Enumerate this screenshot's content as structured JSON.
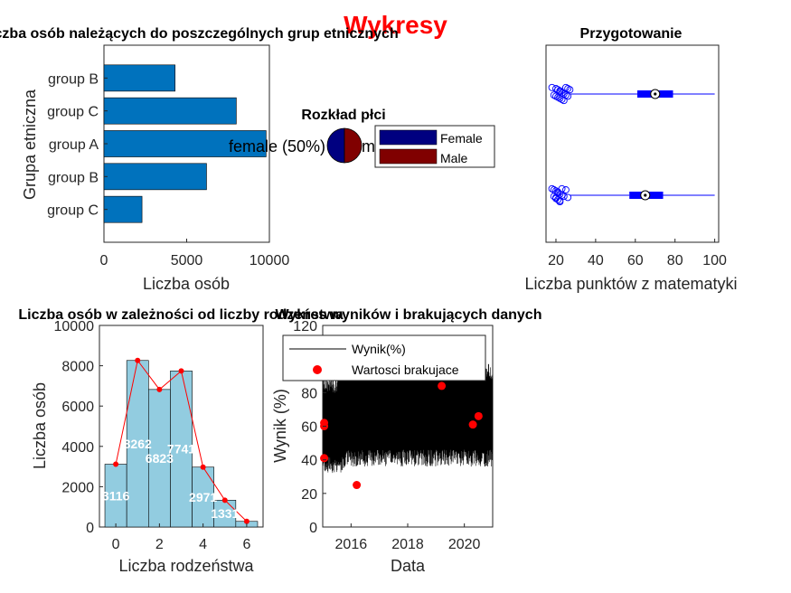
{
  "figure_title": "Wykresy",
  "chart_data": [
    {
      "type": "bar",
      "orientation": "horizontal",
      "title": "Liczba osób należących do poszczególnych grup etnicznych",
      "xlabel": "Liczba osób",
      "ylabel": "Grupa etniczna",
      "categories": [
        "group C",
        "group B",
        "group A",
        "group C",
        "group B"
      ],
      "values": [
        2300,
        6200,
        9800,
        8000,
        4300
      ],
      "xlim": [
        0,
        10000
      ],
      "xticks": [
        "0",
        "5000",
        "10000"
      ],
      "color": "#0072BD"
    },
    {
      "type": "pie",
      "title": "Rozkład płci",
      "categories": [
        "Female",
        "Male"
      ],
      "values": [
        50,
        50
      ],
      "slice_labels": [
        "female (50%)",
        "m"
      ],
      "colors": [
        "#000080",
        "#800000"
      ],
      "legend": [
        "Female",
        "Male"
      ],
      "legend_position": "right"
    },
    {
      "type": "box",
      "orientation": "horizontal",
      "title": "Przygotowanie",
      "xlabel": "Liczba punktów z matematyki",
      "xlim": [
        15,
        102
      ],
      "xticks": [
        "20",
        "40",
        "60",
        "80",
        "100"
      ],
      "color": "#0000FF",
      "series": [
        {
          "q1": 61,
          "median": 70,
          "q3": 79,
          "whisker_low": 27,
          "whisker_high": 100,
          "mean": 70,
          "outliers": [
            18,
            19,
            20,
            20,
            21,
            21,
            22,
            22,
            22,
            23,
            23,
            24,
            24,
            25,
            25,
            26,
            26,
            27
          ]
        },
        {
          "q1": 57,
          "median": 65,
          "q3": 74,
          "whisker_low": 27,
          "whisker_high": 100,
          "mean": 65,
          "outliers": [
            18,
            19,
            19,
            20,
            20,
            20,
            21,
            21,
            21,
            22,
            22,
            22,
            23,
            23,
            24,
            25,
            26
          ]
        }
      ]
    },
    {
      "type": "bar",
      "title": "Liczba osób w zależności od liczby rodzeństwa",
      "xlabel": "Liczba rodzeństwa",
      "ylabel": "Liczba osób",
      "x": [
        0,
        1,
        2,
        3,
        4,
        5,
        6
      ],
      "values": [
        3116,
        8262,
        6823,
        7741,
        2971,
        1331,
        280
      ],
      "data_labels": [
        "3116",
        "8262",
        "6823",
        "7741",
        "2971",
        "1331",
        ""
      ],
      "xticks": [
        "0",
        "2",
        "4",
        "6"
      ],
      "yticks": [
        "0",
        "2000",
        "4000",
        "6000",
        "8000",
        "10000"
      ],
      "ylim": [
        0,
        10000
      ],
      "bar_color": "#92CCE0",
      "line_color": "#FF0000"
    },
    {
      "type": "line",
      "title": "Wykres wyników i brakujących danych",
      "xlabel": "Data",
      "ylabel": "Wynik (%)",
      "xlim": [
        2015,
        2021
      ],
      "ylim": [
        0,
        120
      ],
      "xticks": [
        "2016",
        "2018",
        "2020"
      ],
      "yticks": [
        "0",
        "20",
        "40",
        "60",
        "80",
        "100",
        "120"
      ],
      "series": [
        {
          "name": "Wynik(%)",
          "color": "#000000",
          "range": [
            30,
            98
          ]
        },
        {
          "name": "Wartosci brakujace",
          "color": "#FF0000",
          "points": [
            [
              2015.05,
              62
            ],
            [
              2015.05,
              60
            ],
            [
              2015.05,
              41
            ],
            [
              2016.2,
              25
            ],
            [
              2019.2,
              84
            ],
            [
              2020.3,
              61
            ],
            [
              2020.5,
              66
            ]
          ]
        }
      ],
      "legend_position": "top-left"
    }
  ]
}
